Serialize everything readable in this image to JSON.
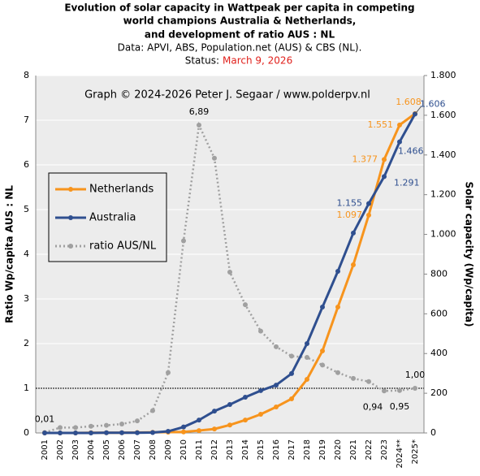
{
  "chart_data": {
    "type": "line",
    "title": [
      "Evolution of solar capacity in Wattpeak per capita in competing",
      "world champions Australia & Netherlands,",
      "and development of ratio AUS : NL"
    ],
    "subtitle": "Data: APVI, ABS, Population.net (AUS) & CBS (NL).",
    "status_label": "Status:",
    "status_date": "March 9, 2026",
    "annotation": "Graph © 2024-2026  Peter J. Segaar / www.polderpv.nl",
    "ylabel": "Ratio Wp/capita AUS : NL",
    "y2label": "Solar capacity (Wp/capita)",
    "categories": [
      "2001",
      "2002",
      "2003",
      "2004",
      "2005",
      "2006",
      "2007",
      "2008",
      "2009",
      "2010",
      "2011",
      "2012",
      "2013",
      "2014",
      "2015",
      "2016",
      "2017",
      "2018",
      "2019",
      "2020",
      "2021",
      "2022",
      "2023",
      "2024**",
      "2025*"
    ],
    "ylim": [
      0,
      8
    ],
    "yticks": [
      0,
      1,
      2,
      3,
      4,
      5,
      6,
      7,
      8
    ],
    "y2lim": [
      0,
      1800
    ],
    "y2ticks": [
      0,
      200,
      400,
      600,
      800,
      {
        "value": 1000,
        "label": "1.000"
      },
      {
        "value": 1200,
        "label": "1.200"
      },
      {
        "value": 1400,
        "label": "1.400"
      },
      {
        "value": 1600,
        "label": "1.600"
      },
      {
        "value": 1800,
        "label": "1.800"
      }
    ],
    "reference_line": 1,
    "grid": true,
    "legend": "left",
    "series": [
      {
        "name": "Netherlands",
        "color": "#f7941d",
        "axis": "y2",
        "marker": "circle",
        "dash": false,
        "values": [
          0,
          0,
          0,
          1,
          1,
          1,
          2,
          3,
          4,
          5,
          12,
          20,
          40,
          65,
          94,
          131,
          172,
          270,
          413,
          634,
          847,
          1097,
          1377,
          1551,
          1608
        ],
        "value_labels": [
          null,
          null,
          null,
          null,
          null,
          null,
          null,
          null,
          null,
          null,
          null,
          null,
          null,
          null,
          null,
          null,
          null,
          null,
          null,
          null,
          null,
          "1.097",
          "1.377",
          "1.551",
          "1.608"
        ]
      },
      {
        "name": "Australia",
        "color": "#2f4f8f",
        "axis": "y2",
        "marker": "circle",
        "dash": false,
        "values": [
          0,
          0,
          0,
          0,
          1,
          1,
          1,
          2,
          8,
          30,
          65,
          110,
          143,
          180,
          213,
          241,
          299,
          450,
          634,
          814,
          1007,
          1155,
          1291,
          1466,
          1606
        ],
        "value_labels": [
          null,
          null,
          null,
          null,
          null,
          null,
          null,
          null,
          null,
          null,
          null,
          null,
          null,
          null,
          null,
          null,
          null,
          null,
          null,
          null,
          null,
          "1.155",
          "1.291",
          "1.466",
          "1.606"
        ]
      },
      {
        "name": "ratio AUS/NL",
        "color": "#a0a0a0",
        "axis": "y",
        "marker": "circle",
        "dash": true,
        "values": [
          0.01,
          0.12,
          0.12,
          0.15,
          0.17,
          0.2,
          0.27,
          0.5,
          1.35,
          4.3,
          6.89,
          6.15,
          3.6,
          2.87,
          2.28,
          1.93,
          1.72,
          1.69,
          1.52,
          1.35,
          1.22,
          1.15,
          0.94,
          0.95,
          1.0
        ],
        "value_labels": [
          "0,01",
          null,
          null,
          null,
          null,
          null,
          null,
          null,
          null,
          null,
          "6,89",
          null,
          null,
          null,
          null,
          null,
          null,
          null,
          null,
          null,
          null,
          null,
          "0,94",
          "0,95",
          "1,00"
        ]
      }
    ]
  }
}
